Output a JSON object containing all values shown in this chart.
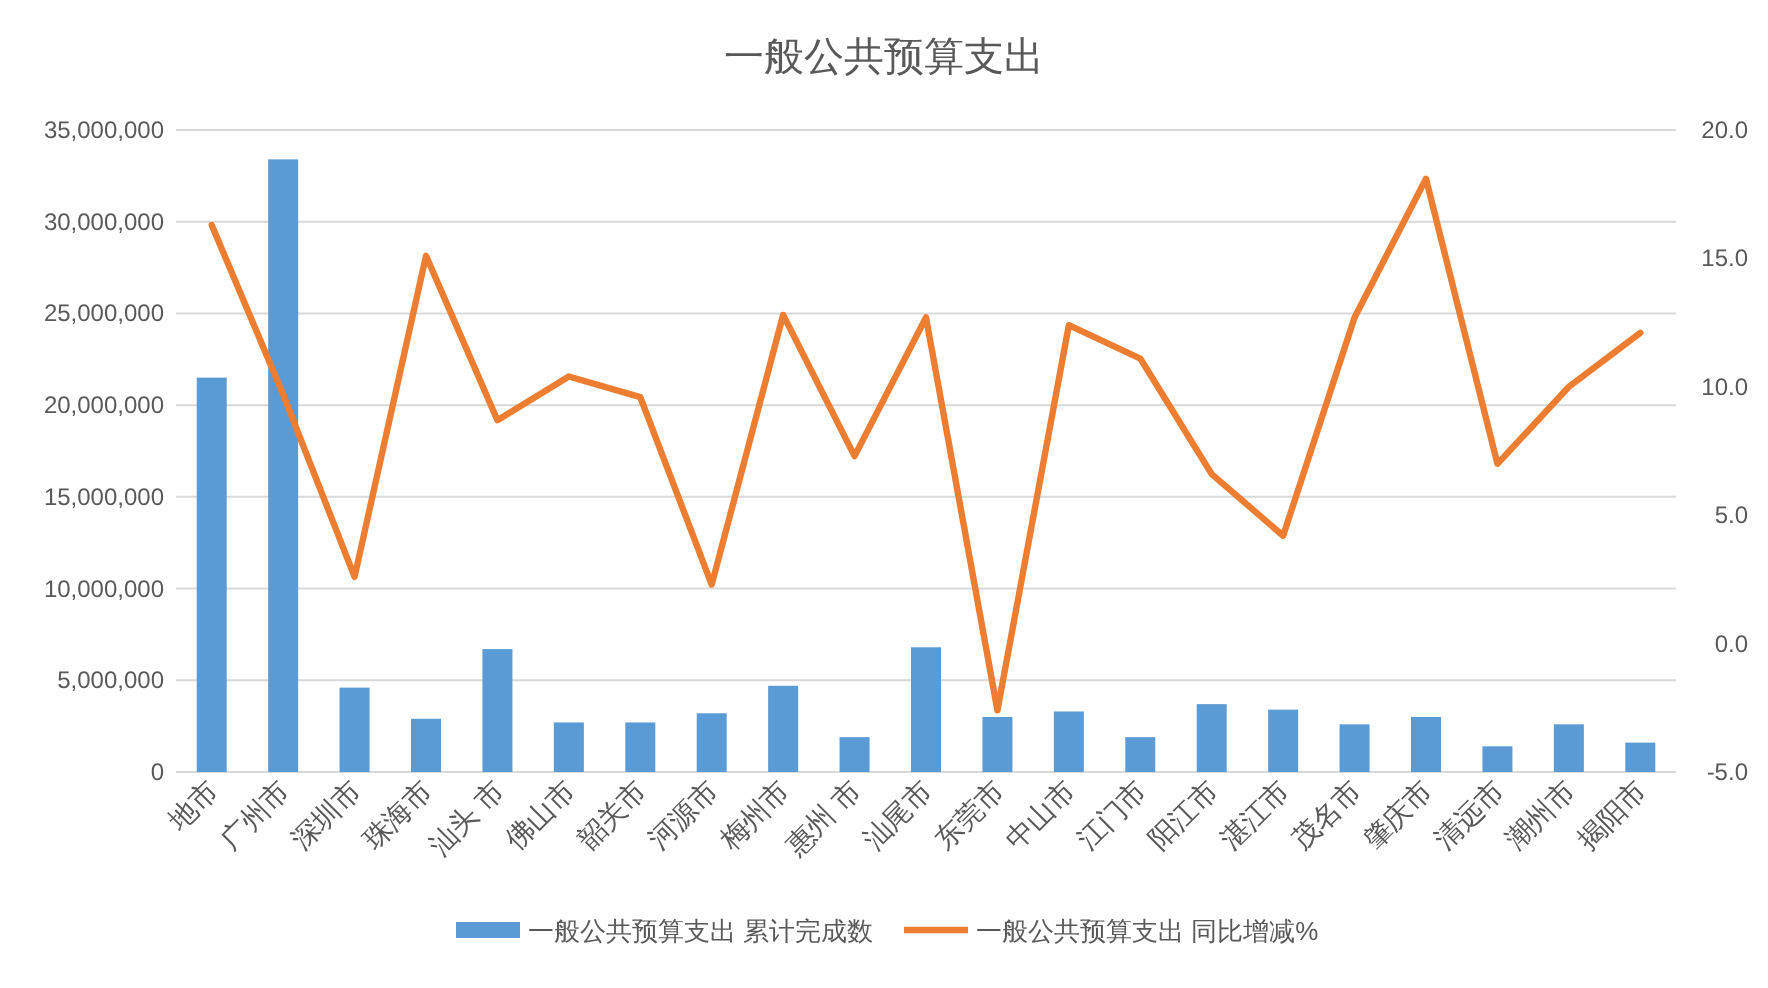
{
  "chart_data": {
    "type": "bar",
    "title": "一般公共预算支出",
    "categories": [
      "地市",
      "广州市",
      "深圳市",
      "珠海市",
      "汕头 市",
      "佛山市",
      "韶关市",
      "河源市",
      "梅州市",
      "惠州 市",
      "汕尾市",
      "东莞市",
      "中山市",
      "江门市",
      "阳江市",
      "湛江市",
      "茂名市",
      "肇庆市",
      "清远市",
      "潮州市",
      "揭阳市"
    ],
    "series": [
      {
        "name": "一般公共预算支出 累计完成数",
        "color": "#5b9bd5",
        "values": [
          21500000,
          33400000,
          4600000,
          2900000,
          6700000,
          2700000,
          2700000,
          3200000,
          4700000,
          1900000,
          6800000,
          3000000,
          3300000,
          1900000,
          3700000,
          3400000,
          2600000,
          3000000,
          1400000,
          2600000,
          1600000
        ]
      },
      {
        "name": "一般公共预算支出 同比增减%",
        "type": "line",
        "axis": "y2",
        "color": "#ed7d31",
        "values": [
          16.3,
          9.7,
          2.6,
          15.1,
          8.7,
          10.4,
          9.6,
          2.3,
          12.8,
          7.3,
          12.7,
          -2.6,
          12.4,
          11.1,
          6.6,
          4.2,
          12.7,
          18.1,
          7.0,
          10.0,
          12.1
        ]
      }
    ],
    "ylim": [
      0,
      35000000
    ],
    "yticks": [
      {
        "value": 0,
        "label": "0"
      },
      {
        "value": 5000000,
        "label": "5,000,000"
      },
      {
        "value": 10000000,
        "label": "10,000,000"
      },
      {
        "value": 15000000,
        "label": "15,000,000"
      },
      {
        "value": 20000000,
        "label": "20,000,000"
      },
      {
        "value": 25000000,
        "label": "25,000,000"
      },
      {
        "value": 30000000,
        "label": "30,000,000"
      },
      {
        "value": 35000000,
        "label": "35,000,000"
      }
    ],
    "y2lim": [
      -5,
      20
    ],
    "y2ticks": [
      {
        "value": -5,
        "label": "-5.0"
      },
      {
        "value": 0,
        "label": "0.0"
      },
      {
        "value": 5,
        "label": "5.0"
      },
      {
        "value": 10,
        "label": "10.0"
      },
      {
        "value": 15,
        "label": "15.0"
      },
      {
        "value": 20,
        "label": "20.0"
      }
    ],
    "grid": "y",
    "legend": "bottom"
  }
}
